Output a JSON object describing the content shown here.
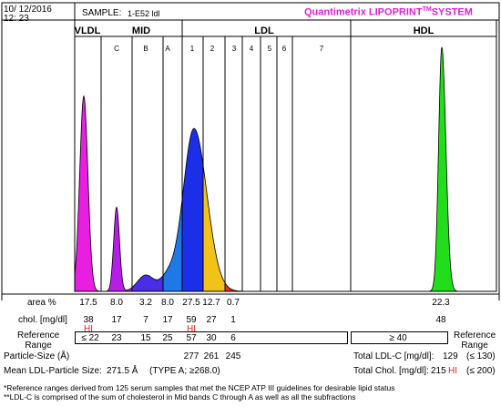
{
  "header": {
    "date": "10/ 12/2016",
    "time": "12: 23",
    "sample_label": "SAMPLE:",
    "sample_id": "1-E52 ldl",
    "brand_main": "Quantimetrix LIPOPRINT",
    "brand_tm": "TM",
    "brand_system": "SYSTEM"
  },
  "colors": {
    "vldl": "#e81ee0",
    "mid_c": "#b61ee8",
    "mid_b": "#4a2ee6",
    "mid_a": "#1f78e8",
    "ldl1": "#1c2fe8",
    "ldl2": "#f0c21a",
    "ldl3": "#e82a1a",
    "hdl": "#22dd1a",
    "brand": "#e21ed6",
    "hi": "#e8211b"
  },
  "chart_data": {
    "type": "area",
    "title": "Quantimetrix LIPOPRINT SYSTEM",
    "groups": [
      "VLDL",
      "MID",
      "LDL",
      "HDL"
    ],
    "bands": [
      "VLDL",
      "C",
      "B",
      "A",
      "1",
      "2",
      "3",
      "4",
      "5",
      "6",
      "7",
      "HDL"
    ],
    "area_percent": [
      "17.5",
      "8.0",
      "3.2",
      "8.0",
      "27.5",
      "12.7",
      "0.7",
      "",
      "",
      "",
      "",
      "22.3"
    ],
    "chol_mg_dl": [
      "38",
      "17",
      "7",
      "17",
      "59",
      "27",
      "1",
      "",
      "",
      "",
      "",
      "48"
    ],
    "hi_flags": [
      "HI",
      "",
      "",
      "",
      "HI",
      "",
      "",
      "",
      "",
      "",
      "",
      ""
    ],
    "reference_range": [
      "≤ 22",
      "23",
      "15",
      "25",
      "57",
      "30",
      "6",
      "",
      "",
      "",
      "",
      "≥ 40"
    ],
    "peaks": [
      {
        "band": "VLDL",
        "relative_height": 0.72
      },
      {
        "band": "C",
        "relative_height": 0.31
      },
      {
        "band": "B",
        "relative_height": 0.06
      },
      {
        "band": "A",
        "relative_height": 0.05
      },
      {
        "band": "1",
        "relative_height": 0.6
      },
      {
        "band": "HDL",
        "relative_height": 0.9
      }
    ],
    "particle_size_angstrom": [
      "277",
      "261",
      "245"
    ]
  },
  "table": {
    "area_label": "area %",
    "chol_label": "chol. [mg/dl]",
    "ref_label_1": "Reference",
    "ref_label_2": "Range",
    "ref_right_1": "Reference",
    "ref_right_2": "Range",
    "particle_size_label": "Particle-Size (Å)",
    "mean_ldl_label": "Mean LDL-Particle Size:",
    "mean_ldl_value": "271.5 Å",
    "mean_ldl_type": "(TYPE A; ≥268.0)",
    "total_ldl_label": "Total LDL-C [mg/dl]:",
    "total_ldl_value": "129",
    "total_ldl_ref": "(≤ 130)",
    "total_chol_label": "Total Chol. [mg/dl]:",
    "total_chol_value": "215",
    "total_chol_flag": "HI",
    "total_chol_ref": "(≤ 200)"
  },
  "footnotes": {
    "note1": "*Reference ranges derived from 125 serum samples that met the NCEP ATP III guidelines for desirable lipid status",
    "note2": "**LDL-C is comprised of the sum of cholesterol in Mid bands C through A as well as all the subfractions"
  }
}
